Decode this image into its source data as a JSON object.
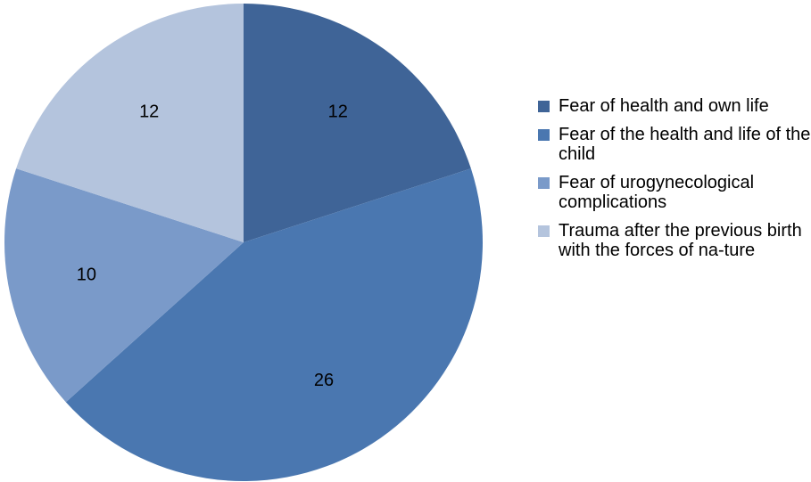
{
  "chart_data": {
    "type": "pie",
    "categories": [
      "Fear of health and own life",
      "Fear of the health and life of the child",
      "Fear of urogynecological complications",
      "Trauma after the previous birth with the forces of na-ture"
    ],
    "values": [
      12,
      26,
      10,
      12
    ],
    "data_labels": [
      "12",
      "26",
      "10",
      "12"
    ],
    "colors": [
      "#3f6497",
      "#4a77b0",
      "#7a9ac9",
      "#b4c4dd"
    ],
    "legend_placement": "right",
    "start_angle_deg": 0,
    "direction": "clockwise"
  },
  "legend": {
    "items": [
      {
        "label": "Fear of health and own life",
        "color": "#3f6497"
      },
      {
        "label": "Fear of the health and life of the child",
        "color": "#4a77b0"
      },
      {
        "label": "Fear of urogynecological complications",
        "color": "#7a9ac9"
      },
      {
        "label": "Trauma after the previous birth with the forces of na-ture",
        "color": "#b4c4dd"
      }
    ]
  }
}
